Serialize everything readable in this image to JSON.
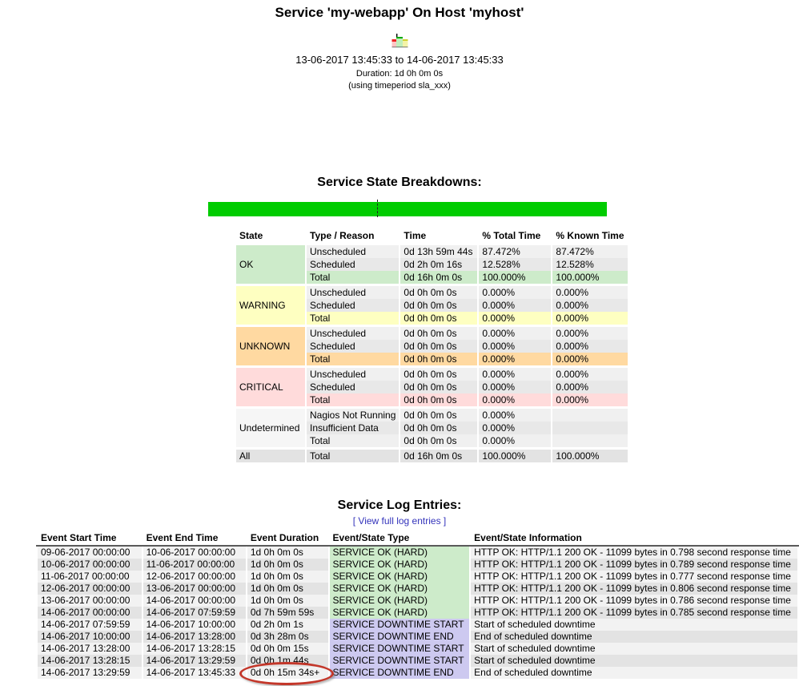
{
  "header": {
    "title": "Service 'my-webapp' On Host 'myhost'",
    "icon": "trends-mini-chart-icon",
    "date_range": "13-06-2017 13:45:33 to 14-06-2017 13:45:33",
    "duration": "Duration: 1d 0h 0m 0s",
    "timeperiod": "(using timeperiod sla_xxx)"
  },
  "breakdown": {
    "heading": "Service State Breakdowns:",
    "bar": {
      "color": "#00CC00",
      "divider_pct": 42.4
    },
    "table": {
      "headers": [
        "State",
        "Type / Reason",
        "Time",
        "% Total Time",
        "% Known Time"
      ],
      "groups": [
        {
          "key": "ok",
          "state": "OK",
          "state_color": "ok_bg",
          "total_color": "ok_bg",
          "rows": [
            {
              "type": "Unscheduled",
              "time": "0d 13h 59m 44s",
              "total": "87.472%",
              "known": "87.472%"
            },
            {
              "type": "Scheduled",
              "time": "0d 2h 0m 16s",
              "total": "12.528%",
              "known": "12.528%"
            },
            {
              "type": "Total",
              "time": "0d 16h 0m 0s",
              "total": "100.000%",
              "known": "100.000%"
            }
          ]
        },
        {
          "key": "warning",
          "state": "WARNING",
          "state_color": "warning_bg",
          "total_color": "warning_bg",
          "rows": [
            {
              "type": "Unscheduled",
              "time": "0d 0h 0m 0s",
              "total": "0.000%",
              "known": "0.000%"
            },
            {
              "type": "Scheduled",
              "time": "0d 0h 0m 0s",
              "total": "0.000%",
              "known": "0.000%"
            },
            {
              "type": "Total",
              "time": "0d 0h 0m 0s",
              "total": "0.000%",
              "known": "0.000%"
            }
          ]
        },
        {
          "key": "unknown",
          "state": "UNKNOWN",
          "state_color": "unknown_bg",
          "total_color": "unknown_bg",
          "rows": [
            {
              "type": "Unscheduled",
              "time": "0d 0h 0m 0s",
              "total": "0.000%",
              "known": "0.000%"
            },
            {
              "type": "Scheduled",
              "time": "0d 0h 0m 0s",
              "total": "0.000%",
              "known": "0.000%"
            },
            {
              "type": "Total",
              "time": "0d 0h 0m 0s",
              "total": "0.000%",
              "known": "0.000%"
            }
          ]
        },
        {
          "key": "critical",
          "state": "CRITICAL",
          "state_color": "critical_bg",
          "total_color": "critical_bg",
          "rows": [
            {
              "type": "Unscheduled",
              "time": "0d 0h 0m 0s",
              "total": "0.000%",
              "known": "0.000%"
            },
            {
              "type": "Scheduled",
              "time": "0d 0h 0m 0s",
              "total": "0.000%",
              "known": "0.000%"
            },
            {
              "type": "Total",
              "time": "0d 0h 0m 0s",
              "total": "0.000%",
              "known": "0.000%"
            }
          ]
        },
        {
          "key": "undetermined",
          "state": "Undetermined",
          "state_color": "undetermined_state_bg",
          "total_color": null,
          "rows": [
            {
              "type": "Nagios Not Running",
              "time": "0d 0h 0m 0s",
              "total": "0.000%",
              "known": ""
            },
            {
              "type": "Insufficient Data",
              "time": "0d 0h 0m 0s",
              "total": "0.000%",
              "known": ""
            },
            {
              "type": "Total",
              "time": "0d 0h 0m 0s",
              "total": "0.000%",
              "known": ""
            }
          ]
        },
        {
          "key": "all",
          "state": "All",
          "state_color": null,
          "total_color": null,
          "group_bg": "all_row_bg",
          "rows": [
            {
              "type": "Total",
              "time": "0d 16h 0m 0s",
              "total": "100.000%",
              "known": "100.000%"
            }
          ]
        }
      ]
    }
  },
  "log": {
    "heading": "Service Log Entries:",
    "link_label": "[ View full log entries ]",
    "table": {
      "headers": [
        "Event Start Time",
        "Event End Time",
        "Event Duration",
        "Event/State Type",
        "Event/State Information"
      ],
      "rows": [
        {
          "start": "09-06-2017 00:00:00",
          "end": "10-06-2017 00:00:00",
          "duration": "1d 0h 0m 0s",
          "type": "SERVICE OK (HARD)",
          "type_class": "ok",
          "info": "HTTP OK: HTTP/1.1 200 OK - 11099 bytes in 0.798 second response time"
        },
        {
          "start": "10-06-2017 00:00:00",
          "end": "11-06-2017 00:00:00",
          "duration": "1d 0h 0m 0s",
          "type": "SERVICE OK (HARD)",
          "type_class": "ok",
          "info": "HTTP OK: HTTP/1.1 200 OK - 11099 bytes in 0.789 second response time"
        },
        {
          "start": "11-06-2017 00:00:00",
          "end": "12-06-2017 00:00:00",
          "duration": "1d 0h 0m 0s",
          "type": "SERVICE OK (HARD)",
          "type_class": "ok",
          "info": "HTTP OK: HTTP/1.1 200 OK - 11099 bytes in 0.777 second response time"
        },
        {
          "start": "12-06-2017 00:00:00",
          "end": "13-06-2017 00:00:00",
          "duration": "1d 0h 0m 0s",
          "type": "SERVICE OK (HARD)",
          "type_class": "ok",
          "info": "HTTP OK: HTTP/1.1 200 OK - 11099 bytes in 0.806 second response time"
        },
        {
          "start": "13-06-2017 00:00:00",
          "end": "14-06-2017 00:00:00",
          "duration": "1d 0h 0m 0s",
          "type": "SERVICE OK (HARD)",
          "type_class": "ok",
          "info": "HTTP OK: HTTP/1.1 200 OK - 11099 bytes in 0.786 second response time"
        },
        {
          "start": "14-06-2017 00:00:00",
          "end": "14-06-2017 07:59:59",
          "duration": "0d 7h 59m 59s",
          "type": "SERVICE OK (HARD)",
          "type_class": "ok",
          "info": "HTTP OK: HTTP/1.1 200 OK - 11099 bytes in 0.785 second response time"
        },
        {
          "start": "14-06-2017 07:59:59",
          "end": "14-06-2017 10:00:00",
          "duration": "0d 2h 0m 1s",
          "type": "SERVICE DOWNTIME START",
          "type_class": "downtime",
          "info": "Start of scheduled downtime"
        },
        {
          "start": "14-06-2017 10:00:00",
          "end": "14-06-2017 13:28:00",
          "duration": "0d 3h 28m 0s",
          "type": "SERVICE DOWNTIME END",
          "type_class": "downtime",
          "info": "End of scheduled downtime"
        },
        {
          "start": "14-06-2017 13:28:00",
          "end": "14-06-2017 13:28:15",
          "duration": "0d 0h 0m 15s",
          "type": "SERVICE DOWNTIME START",
          "type_class": "downtime",
          "info": "Start of scheduled downtime"
        },
        {
          "start": "14-06-2017 13:28:15",
          "end": "14-06-2017 13:29:59",
          "duration": "0d 0h 1m 44s",
          "type": "SERVICE DOWNTIME START",
          "type_class": "downtime",
          "info": "Start of scheduled downtime"
        },
        {
          "start": "14-06-2017 13:29:59",
          "end": "14-06-2017 13:45:33",
          "duration": "0d 0h 15m 34s+",
          "type": "SERVICE DOWNTIME END",
          "type_class": "downtime",
          "info": "End of scheduled downtime",
          "annotated": true
        }
      ]
    }
  },
  "colors": {
    "ok_bg": "#CDEBCA",
    "warning_bg": "#FEFFC1",
    "unknown_bg": "#FFD9A1",
    "critical_bg": "#FFDBDB",
    "downtime_bg": "#CDC9F0",
    "undetermined_state_bg": "#F6F6F6",
    "all_row_bg": "#E3E3E3",
    "row_light": "#F0F0F0",
    "row_dark": "#E8E8E8",
    "log_row_light": "#F2F2F2",
    "log_row_dark": "#E3E3E3",
    "bar_green": "#00CC00",
    "link": "#3333BB",
    "annotation": "#C3372A"
  }
}
